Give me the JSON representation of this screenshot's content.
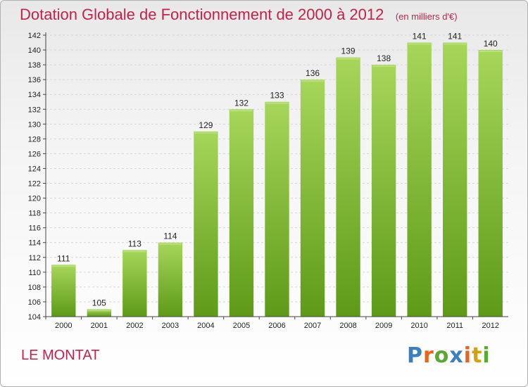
{
  "header": {
    "title": "Dotation Globale de Fonctionnement de 2000 à 2012",
    "subtitle": "(en milliers d'€)"
  },
  "footer": {
    "city": "LE MONTAT",
    "logo": "Proxiti",
    "logo_colors": [
      "#3a7fc0",
      "#e8641c",
      "#5aa832",
      "#3a7fc0",
      "#e8641c",
      "#d4a20a",
      "#5aa832"
    ]
  },
  "chart_data": {
    "type": "bar",
    "title": "Dotation Globale de Fonctionnement de 2000 à 2012",
    "subtitle": "(en milliers d'€)",
    "xlabel": "",
    "ylabel": "",
    "categories": [
      "2000",
      "2001",
      "2002",
      "2003",
      "2004",
      "2005",
      "2006",
      "2007",
      "2008",
      "2009",
      "2010",
      "2011",
      "2012"
    ],
    "values": [
      111,
      105,
      113,
      114,
      129,
      132,
      133,
      136,
      139,
      138,
      141,
      141,
      140
    ],
    "ylim": [
      104,
      142
    ],
    "yticks": [
      104,
      106,
      108,
      110,
      112,
      114,
      116,
      118,
      120,
      122,
      124,
      126,
      128,
      130,
      132,
      134,
      136,
      138,
      140,
      142
    ],
    "grid": true,
    "legend": "none",
    "bar_color": "#7cbd2c",
    "bar_color_light": "#a6d65a"
  }
}
